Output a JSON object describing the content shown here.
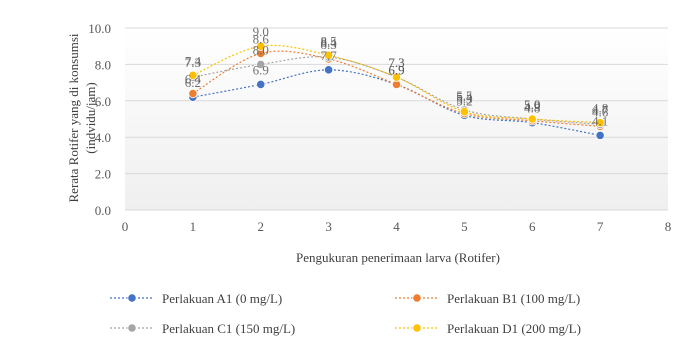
{
  "chart_data": {
    "type": "line",
    "title": "",
    "xlabel": "Pengukuran penerimaan larva (Rotifer)",
    "ylabel": "Rerata Rotifer yang di konsumsi",
    "ylabel2": "(indvidu/jam)",
    "xlim": [
      0,
      8
    ],
    "ylim": [
      0,
      10
    ],
    "xticks": [
      "0",
      "1",
      "2",
      "3",
      "4",
      "5",
      "6",
      "7",
      "8"
    ],
    "yticks": [
      "0.0",
      "2.0",
      "4.0",
      "6.0",
      "8.0",
      "10.0"
    ],
    "grid": "horizontal",
    "legend_position": "bottom",
    "x": [
      1,
      2,
      3,
      4,
      5,
      6,
      7
    ],
    "series": [
      {
        "name": "Perlakuan A1 (0 mg/L)",
        "color": "#4472C4",
        "values": [
          6.2,
          6.9,
          7.7,
          6.9,
          5.2,
          4.8,
          4.1
        ]
      },
      {
        "name": "Perlakuan B1 (100 mg/L)",
        "color": "#ED7D31",
        "values": [
          6.4,
          8.6,
          8.3,
          6.9,
          5.3,
          4.9,
          4.6
        ]
      },
      {
        "name": "Perlakuan C1 (150 mg/L)",
        "color": "#A5A5A5",
        "values": [
          7.3,
          8.0,
          8.4,
          7.3,
          5.5,
          5.0,
          4.7
        ]
      },
      {
        "name": "Perlakuan D1 (200 mg/L)",
        "color": "#FFC000",
        "values": [
          7.4,
          9.0,
          8.5,
          7.3,
          5.4,
          5.0,
          4.8
        ]
      }
    ],
    "label_color": "#595959"
  }
}
